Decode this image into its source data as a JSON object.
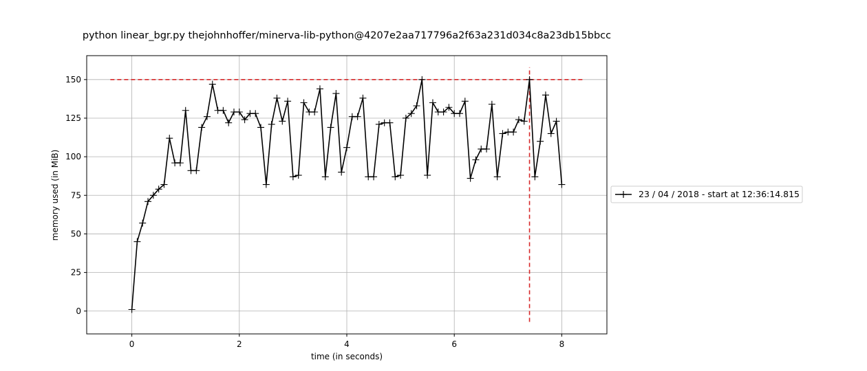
{
  "chart_data": {
    "type": "line",
    "title": "python linear_bgr.py thejohnhoffer/minerva-lib-python@4207e2aa717796a2f63a231d034c8a23db15bbcc",
    "xlabel": "time (in seconds)",
    "ylabel": "memory used (in MiB)",
    "xlim": [
      -0.84,
      8.84
    ],
    "ylim": [
      -14.8,
      165.5
    ],
    "xticks": [
      0,
      2,
      4,
      6,
      8
    ],
    "yticks": [
      0,
      25,
      50,
      75,
      100,
      125,
      150
    ],
    "grid": true,
    "legend_position": "right, outside plot",
    "series": [
      {
        "name": "23 / 04 / 2018 - start at 12:36:14.815",
        "color": "#000000",
        "marker": "+",
        "x": [
          0.0,
          0.1,
          0.2,
          0.3,
          0.4,
          0.5,
          0.6,
          0.7,
          0.8,
          0.9,
          1.0,
          1.1,
          1.2,
          1.3,
          1.4,
          1.5,
          1.6,
          1.7,
          1.8,
          1.9,
          2.0,
          2.1,
          2.2,
          2.3,
          2.4,
          2.5,
          2.6,
          2.7,
          2.8,
          2.9,
          3.0,
          3.1,
          3.2,
          3.3,
          3.4,
          3.5,
          3.6,
          3.7,
          3.8,
          3.9,
          4.0,
          4.1,
          4.2,
          4.3,
          4.4,
          4.5,
          4.6,
          4.7,
          4.8,
          4.9,
          5.0,
          5.1,
          5.2,
          5.3,
          5.4,
          5.5,
          5.6,
          5.7,
          5.8,
          5.9,
          6.0,
          6.1,
          6.2,
          6.3,
          6.4,
          6.5,
          6.6,
          6.7,
          6.8,
          6.9,
          7.0,
          7.1,
          7.2,
          7.3,
          7.4,
          7.5,
          7.6,
          7.7,
          7.8,
          7.9,
          8.0
        ],
        "values": [
          1,
          45,
          57,
          71,
          75,
          79,
          82,
          112,
          96,
          96,
          130,
          91,
          91,
          119,
          126,
          147,
          130,
          130,
          122,
          129,
          129,
          124,
          128,
          128,
          119,
          82,
          121,
          138,
          123,
          136,
          87,
          88,
          135,
          129,
          129,
          144,
          87,
          119,
          141,
          90,
          106,
          126,
          126,
          138,
          87,
          87,
          121,
          122,
          122,
          87,
          88,
          125,
          128,
          133,
          150,
          88,
          135,
          129,
          129,
          132,
          128,
          128,
          136,
          86,
          98,
          105,
          105,
          134,
          87,
          115,
          116,
          116,
          124,
          123,
          150,
          87,
          110,
          140,
          115,
          123,
          82
        ]
      }
    ],
    "annotations": [
      {
        "type": "hline",
        "y": 150,
        "x_range": [
          -0.4,
          8.4
        ],
        "color": "#d62728",
        "style": "dashed"
      },
      {
        "type": "vline",
        "x": 7.4,
        "y_range": [
          -7,
          158
        ],
        "color": "#d62728",
        "style": "dashed"
      }
    ]
  }
}
